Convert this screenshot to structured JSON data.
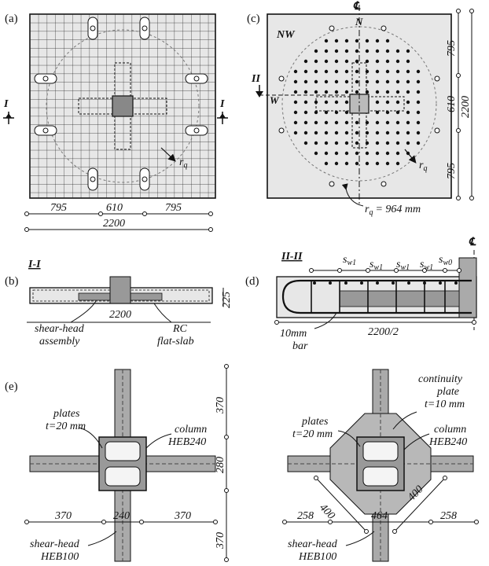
{
  "panels": {
    "a": {
      "label": "(a)",
      "section_marker": "I",
      "rq": "r",
      "rq_sub": "q",
      "dims": [
        "795",
        "610",
        "795"
      ],
      "total": "2200"
    },
    "b": {
      "label": "(b)",
      "title": "I-I",
      "length": "2200",
      "thickness": "225",
      "note_shear_head": [
        "shear-head",
        "assembly"
      ],
      "note_slab": [
        "RC",
        "flat-slab"
      ]
    },
    "c": {
      "label": "(c)",
      "nw": "NW",
      "n": "N",
      "w": "W",
      "centerline": "℄",
      "section_marker": "II",
      "rq": "r",
      "rq_sub": "q",
      "radius_label": "= 964 mm",
      "dims": [
        "795",
        "610",
        "795"
      ],
      "total": "2200"
    },
    "d": {
      "label": "(d)",
      "title": "II-II",
      "centerline": "℄",
      "spacings": [
        {
          "s": "s",
          "sub": "w1"
        },
        {
          "s": "s",
          "sub": "w1"
        },
        {
          "s": "s",
          "sub": "w1"
        },
        {
          "s": "s",
          "sub": "w1"
        },
        {
          "s": "s",
          "sub": "w0"
        }
      ],
      "length": "2200/2",
      "bar_note": [
        "10mm",
        "bar"
      ]
    },
    "e": {
      "label": "(e)",
      "left": {
        "plates": [
          "plates",
          "t=20 mm"
        ],
        "column": [
          "column",
          "HEB240"
        ],
        "shear_head": [
          "shear-head",
          "HEB100"
        ],
        "dims_h": [
          "370",
          "240",
          "370"
        ],
        "dims_v": [
          "370",
          "280",
          "370"
        ]
      },
      "right": {
        "plates": [
          "plates",
          "t=20 mm"
        ],
        "continuity": [
          "continuity",
          "plate",
          "t=10 mm"
        ],
        "column": [
          "column",
          "HEB240"
        ],
        "shear_head": [
          "shear-head",
          "HEB100"
        ],
        "dims_h": [
          "258",
          "464",
          "258"
        ],
        "diag": [
          "400",
          "400"
        ]
      }
    }
  }
}
